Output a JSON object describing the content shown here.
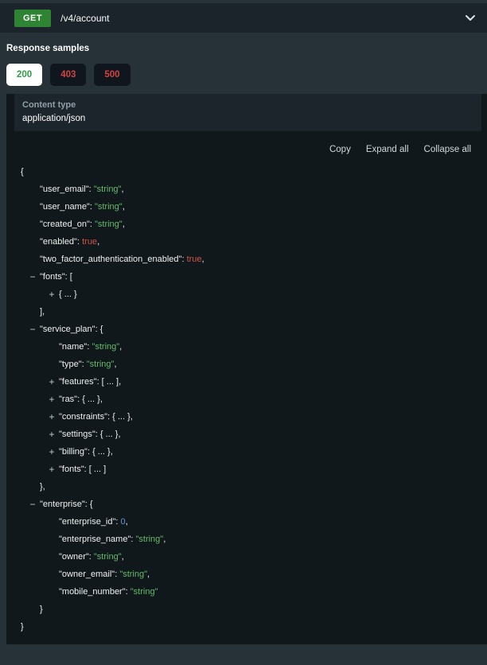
{
  "endpoint": {
    "method": "GET",
    "path": "/v4/account"
  },
  "response_samples": {
    "title": "Response samples",
    "tabs": [
      {
        "label": "200",
        "active": true
      },
      {
        "label": "403",
        "active": false
      },
      {
        "label": "500",
        "active": false
      }
    ]
  },
  "content_type": {
    "label": "Content type",
    "value": "application/json"
  },
  "actions": {
    "copy": "Copy",
    "expand_all": "Expand all",
    "collapse_all": "Collapse all"
  },
  "icons": {
    "chevron_down": "chevron-down-icon",
    "expand": "plus-icon",
    "collapse": "minus-icon"
  },
  "colors": {
    "background": "#263238",
    "endpoint_bar": "#1b242b",
    "panel": "#11181c",
    "content_type_box": "#1c252b",
    "get_badge_green": "#2f8433",
    "tab_active_text_green": "#2f9e44",
    "tab_error_text_red": "#d64141",
    "json_string_green": "#62bb68",
    "json_boolean_red": "#d05249",
    "json_number_blue": "#6398cf"
  },
  "json_sample": {
    "lines": [
      {
        "indent": 0,
        "toggle": null,
        "tokens": [
          [
            "punct",
            "{"
          ]
        ]
      },
      {
        "indent": 1,
        "toggle": null,
        "tokens": [
          [
            "key",
            "\"user_email\""
          ],
          [
            "punct",
            ": "
          ],
          [
            "str",
            "\"string\""
          ],
          [
            "punct",
            ","
          ]
        ]
      },
      {
        "indent": 1,
        "toggle": null,
        "tokens": [
          [
            "key",
            "\"user_name\""
          ],
          [
            "punct",
            ": "
          ],
          [
            "str",
            "\"string\""
          ],
          [
            "punct",
            ","
          ]
        ]
      },
      {
        "indent": 1,
        "toggle": null,
        "tokens": [
          [
            "key",
            "\"created_on\""
          ],
          [
            "punct",
            ": "
          ],
          [
            "str",
            "\"string\""
          ],
          [
            "punct",
            ","
          ]
        ]
      },
      {
        "indent": 1,
        "toggle": null,
        "tokens": [
          [
            "key",
            "\"enabled\""
          ],
          [
            "punct",
            ": "
          ],
          [
            "bool",
            "true"
          ],
          [
            "punct",
            ","
          ]
        ]
      },
      {
        "indent": 1,
        "toggle": null,
        "tokens": [
          [
            "key",
            "\"two_factor_authentication_enabled\""
          ],
          [
            "punct",
            ": "
          ],
          [
            "bool",
            "true"
          ],
          [
            "punct",
            ","
          ]
        ]
      },
      {
        "indent": 1,
        "toggle": "minus",
        "tokens": [
          [
            "key",
            "\"fonts\""
          ],
          [
            "punct",
            ": ["
          ]
        ]
      },
      {
        "indent": 2,
        "toggle": "plus",
        "tokens": [
          [
            "punct",
            "{ ... }"
          ]
        ]
      },
      {
        "indent": 1,
        "toggle": null,
        "tokens": [
          [
            "punct",
            "],"
          ]
        ]
      },
      {
        "indent": 1,
        "toggle": "minus",
        "tokens": [
          [
            "key",
            "\"service_plan\""
          ],
          [
            "punct",
            ": {"
          ]
        ]
      },
      {
        "indent": 2,
        "toggle": null,
        "tokens": [
          [
            "key",
            "\"name\""
          ],
          [
            "punct",
            ": "
          ],
          [
            "str",
            "\"string\""
          ],
          [
            "punct",
            ","
          ]
        ]
      },
      {
        "indent": 2,
        "toggle": null,
        "tokens": [
          [
            "key",
            "\"type\""
          ],
          [
            "punct",
            ": "
          ],
          [
            "str",
            "\"string\""
          ],
          [
            "punct",
            ","
          ]
        ]
      },
      {
        "indent": 2,
        "toggle": "plus",
        "tokens": [
          [
            "key",
            "\"features\""
          ],
          [
            "punct",
            ": [ ... ],"
          ]
        ]
      },
      {
        "indent": 2,
        "toggle": "plus",
        "tokens": [
          [
            "key",
            "\"ras\""
          ],
          [
            "punct",
            ": { ... },"
          ]
        ]
      },
      {
        "indent": 2,
        "toggle": "plus",
        "tokens": [
          [
            "key",
            "\"constraints\""
          ],
          [
            "punct",
            ": { ... },"
          ]
        ]
      },
      {
        "indent": 2,
        "toggle": "plus",
        "tokens": [
          [
            "key",
            "\"settings\""
          ],
          [
            "punct",
            ": { ... },"
          ]
        ]
      },
      {
        "indent": 2,
        "toggle": "plus",
        "tokens": [
          [
            "key",
            "\"billing\""
          ],
          [
            "punct",
            ": { ... },"
          ]
        ]
      },
      {
        "indent": 2,
        "toggle": "plus",
        "tokens": [
          [
            "key",
            "\"fonts\""
          ],
          [
            "punct",
            ": [ ... ]"
          ]
        ]
      },
      {
        "indent": 1,
        "toggle": null,
        "tokens": [
          [
            "punct",
            "},"
          ]
        ]
      },
      {
        "indent": 1,
        "toggle": "minus",
        "tokens": [
          [
            "key",
            "\"enterprise\""
          ],
          [
            "punct",
            ": {"
          ]
        ]
      },
      {
        "indent": 2,
        "toggle": null,
        "tokens": [
          [
            "key",
            "\"enterprise_id\""
          ],
          [
            "punct",
            ": "
          ],
          [
            "num",
            "0"
          ],
          [
            "punct",
            ","
          ]
        ]
      },
      {
        "indent": 2,
        "toggle": null,
        "tokens": [
          [
            "key",
            "\"enterprise_name\""
          ],
          [
            "punct",
            ": "
          ],
          [
            "str",
            "\"string\""
          ],
          [
            "punct",
            ","
          ]
        ]
      },
      {
        "indent": 2,
        "toggle": null,
        "tokens": [
          [
            "key",
            "\"owner\""
          ],
          [
            "punct",
            ": "
          ],
          [
            "str",
            "\"string\""
          ],
          [
            "punct",
            ","
          ]
        ]
      },
      {
        "indent": 2,
        "toggle": null,
        "tokens": [
          [
            "key",
            "\"owner_email\""
          ],
          [
            "punct",
            ": "
          ],
          [
            "str",
            "\"string\""
          ],
          [
            "punct",
            ","
          ]
        ]
      },
      {
        "indent": 2,
        "toggle": null,
        "tokens": [
          [
            "key",
            "\"mobile_number\""
          ],
          [
            "punct",
            ": "
          ],
          [
            "str",
            "\"string\""
          ]
        ]
      },
      {
        "indent": 1,
        "toggle": null,
        "tokens": [
          [
            "punct",
            "}"
          ]
        ]
      },
      {
        "indent": 0,
        "toggle": null,
        "tokens": [
          [
            "punct",
            "}"
          ]
        ]
      }
    ]
  }
}
